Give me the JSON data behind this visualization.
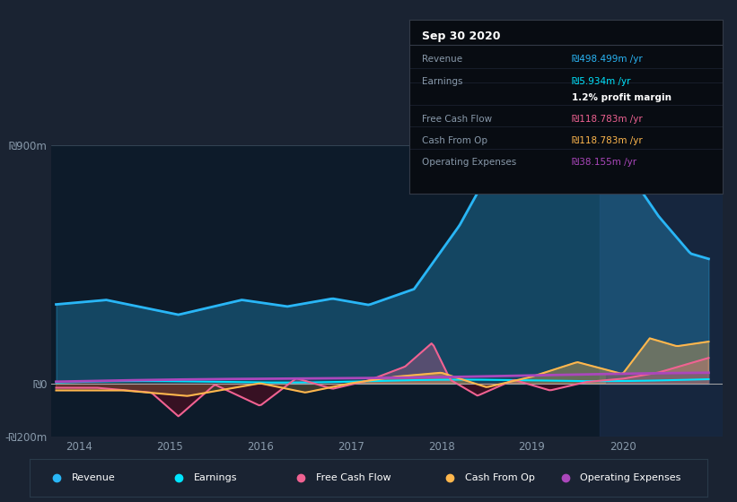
{
  "bg_color": "#1a2332",
  "chart_bg": "#0d1b2a",
  "plot_bg": "#0d1b2a",
  "ylim": [
    -200,
    900
  ],
  "yticks": [
    -200,
    0,
    900
  ],
  "ytick_labels": [
    "-₪200m",
    "₪0",
    "₪900m"
  ],
  "xlim": [
    2013.7,
    2021.1
  ],
  "xticks": [
    2014,
    2015,
    2016,
    2017,
    2018,
    2019,
    2020
  ],
  "colors": {
    "revenue": "#29b6f6",
    "earnings": "#00e5ff",
    "free_cash_flow": "#f06292",
    "cash_from_op": "#ffb74d",
    "operating_expenses": "#ab47bc"
  },
  "tooltip": {
    "title": "Sep 30 2020",
    "rows": [
      {
        "label": "Revenue",
        "value": "₪498.499m /yr",
        "color": "#29b6f6"
      },
      {
        "label": "Earnings",
        "value": "₪5.934m /yr",
        "color": "#00e5ff"
      },
      {
        "label": "",
        "value": "1.2% profit margin",
        "color": "#ffffff"
      },
      {
        "label": "Free Cash Flow",
        "value": "₪118.783m /yr",
        "color": "#f06292"
      },
      {
        "label": "Cash From Op",
        "value": "₪118.783m /yr",
        "color": "#ffb74d"
      },
      {
        "label": "Operating Expenses",
        "value": "₪38.155m /yr",
        "color": "#ab47bc"
      }
    ]
  },
  "legend": [
    {
      "label": "Revenue",
      "color": "#29b6f6"
    },
    {
      "label": "Earnings",
      "color": "#00e5ff"
    },
    {
      "label": "Free Cash Flow",
      "color": "#f06292"
    },
    {
      "label": "Cash From Op",
      "color": "#ffb74d"
    },
    {
      "label": "Operating Expenses",
      "color": "#ab47bc"
    }
  ],
  "highlight_x_start": 2019.75,
  "highlight_x_end": 2021.1
}
